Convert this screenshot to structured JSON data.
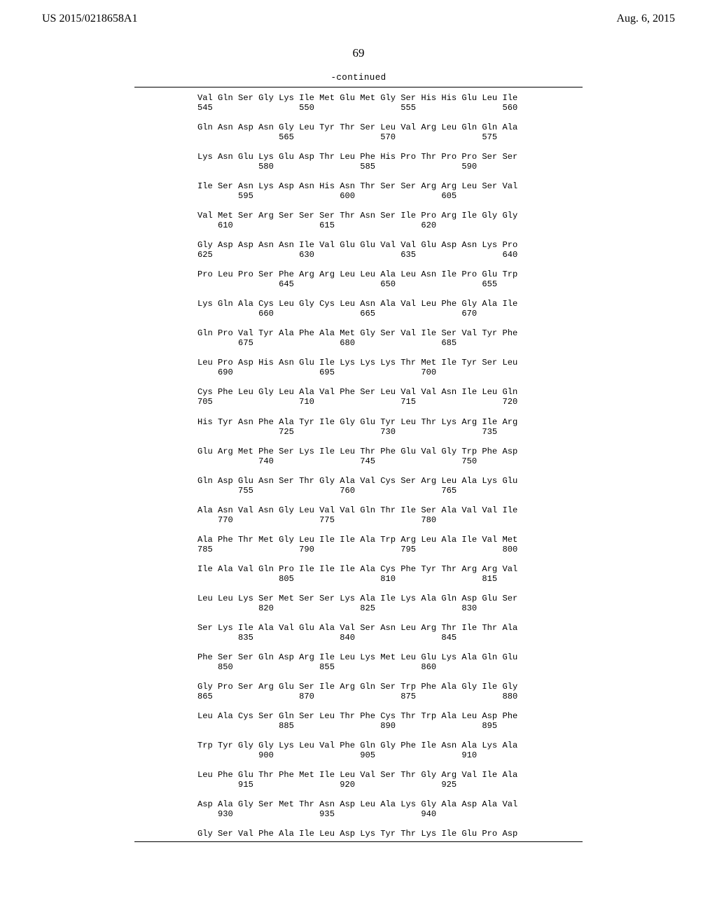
{
  "header": {
    "pub_id": "US 2015/0218658A1",
    "pub_date": "Aug. 6, 2015"
  },
  "page_number": "69",
  "continued_label": "-continued",
  "sequence_lines": [
    "Val Gln Ser Gly Lys Ile Met Glu Met Gly Ser His His Glu Leu Ile",
    "545                 550                 555                 560",
    "",
    "Gln Asn Asp Asn Gly Leu Tyr Thr Ser Leu Val Arg Leu Gln Gln Ala",
    "                565                 570                 575",
    "",
    "Lys Asn Glu Lys Glu Asp Thr Leu Phe His Pro Thr Pro Pro Ser Ser",
    "            580                 585                 590",
    "",
    "Ile Ser Asn Lys Asp Asn His Asn Thr Ser Ser Arg Arg Leu Ser Val",
    "        595                 600                 605",
    "",
    "Val Met Ser Arg Ser Ser Ser Thr Asn Ser Ile Pro Arg Ile Gly Gly",
    "    610                 615                 620",
    "",
    "Gly Asp Asp Asn Asn Ile Val Glu Glu Val Val Glu Asp Asn Lys Pro",
    "625                 630                 635                 640",
    "",
    "Pro Leu Pro Ser Phe Arg Arg Leu Leu Ala Leu Asn Ile Pro Glu Trp",
    "                645                 650                 655",
    "",
    "Lys Gln Ala Cys Leu Gly Cys Leu Asn Ala Val Leu Phe Gly Ala Ile",
    "            660                 665                 670",
    "",
    "Gln Pro Val Tyr Ala Phe Ala Met Gly Ser Val Ile Ser Val Tyr Phe",
    "        675                 680                 685",
    "",
    "Leu Pro Asp His Asn Glu Ile Lys Lys Lys Thr Met Ile Tyr Ser Leu",
    "    690                 695                 700",
    "",
    "Cys Phe Leu Gly Leu Ala Val Phe Ser Leu Val Val Asn Ile Leu Gln",
    "705                 710                 715                 720",
    "",
    "His Tyr Asn Phe Ala Tyr Ile Gly Glu Tyr Leu Thr Lys Arg Ile Arg",
    "                725                 730                 735",
    "",
    "Glu Arg Met Phe Ser Lys Ile Leu Thr Phe Glu Val Gly Trp Phe Asp",
    "            740                 745                 750",
    "",
    "Gln Asp Glu Asn Ser Thr Gly Ala Val Cys Ser Arg Leu Ala Lys Glu",
    "        755                 760                 765",
    "",
    "Ala Asn Val Asn Gly Leu Val Val Gln Thr Ile Ser Ala Val Val Ile",
    "    770                 775                 780",
    "",
    "Ala Phe Thr Met Gly Leu Ile Ile Ala Trp Arg Leu Ala Ile Val Met",
    "785                 790                 795                 800",
    "",
    "Ile Ala Val Gln Pro Ile Ile Ile Ala Cys Phe Tyr Thr Arg Arg Val",
    "                805                 810                 815",
    "",
    "Leu Leu Lys Ser Met Ser Ser Lys Ala Ile Lys Ala Gln Asp Glu Ser",
    "            820                 825                 830",
    "",
    "Ser Lys Ile Ala Val Glu Ala Val Ser Asn Leu Arg Thr Ile Thr Ala",
    "        835                 840                 845",
    "",
    "Phe Ser Ser Gln Asp Arg Ile Leu Lys Met Leu Glu Lys Ala Gln Glu",
    "    850                 855                 860",
    "",
    "Gly Pro Ser Arg Glu Ser Ile Arg Gln Ser Trp Phe Ala Gly Ile Gly",
    "865                 870                 875                 880",
    "",
    "Leu Ala Cys Ser Gln Ser Leu Thr Phe Cys Thr Trp Ala Leu Asp Phe",
    "                885                 890                 895",
    "",
    "Trp Tyr Gly Gly Lys Leu Val Phe Gln Gly Phe Ile Asn Ala Lys Ala",
    "            900                 905                 910",
    "",
    "Leu Phe Glu Thr Phe Met Ile Leu Val Ser Thr Gly Arg Val Ile Ala",
    "        915                 920                 925",
    "",
    "Asp Ala Gly Ser Met Thr Asn Asp Leu Ala Lys Gly Ala Asp Ala Val",
    "    930                 935                 940",
    "",
    "Gly Ser Val Phe Ala Ile Leu Asp Lys Tyr Thr Lys Ile Glu Pro Asp"
  ]
}
